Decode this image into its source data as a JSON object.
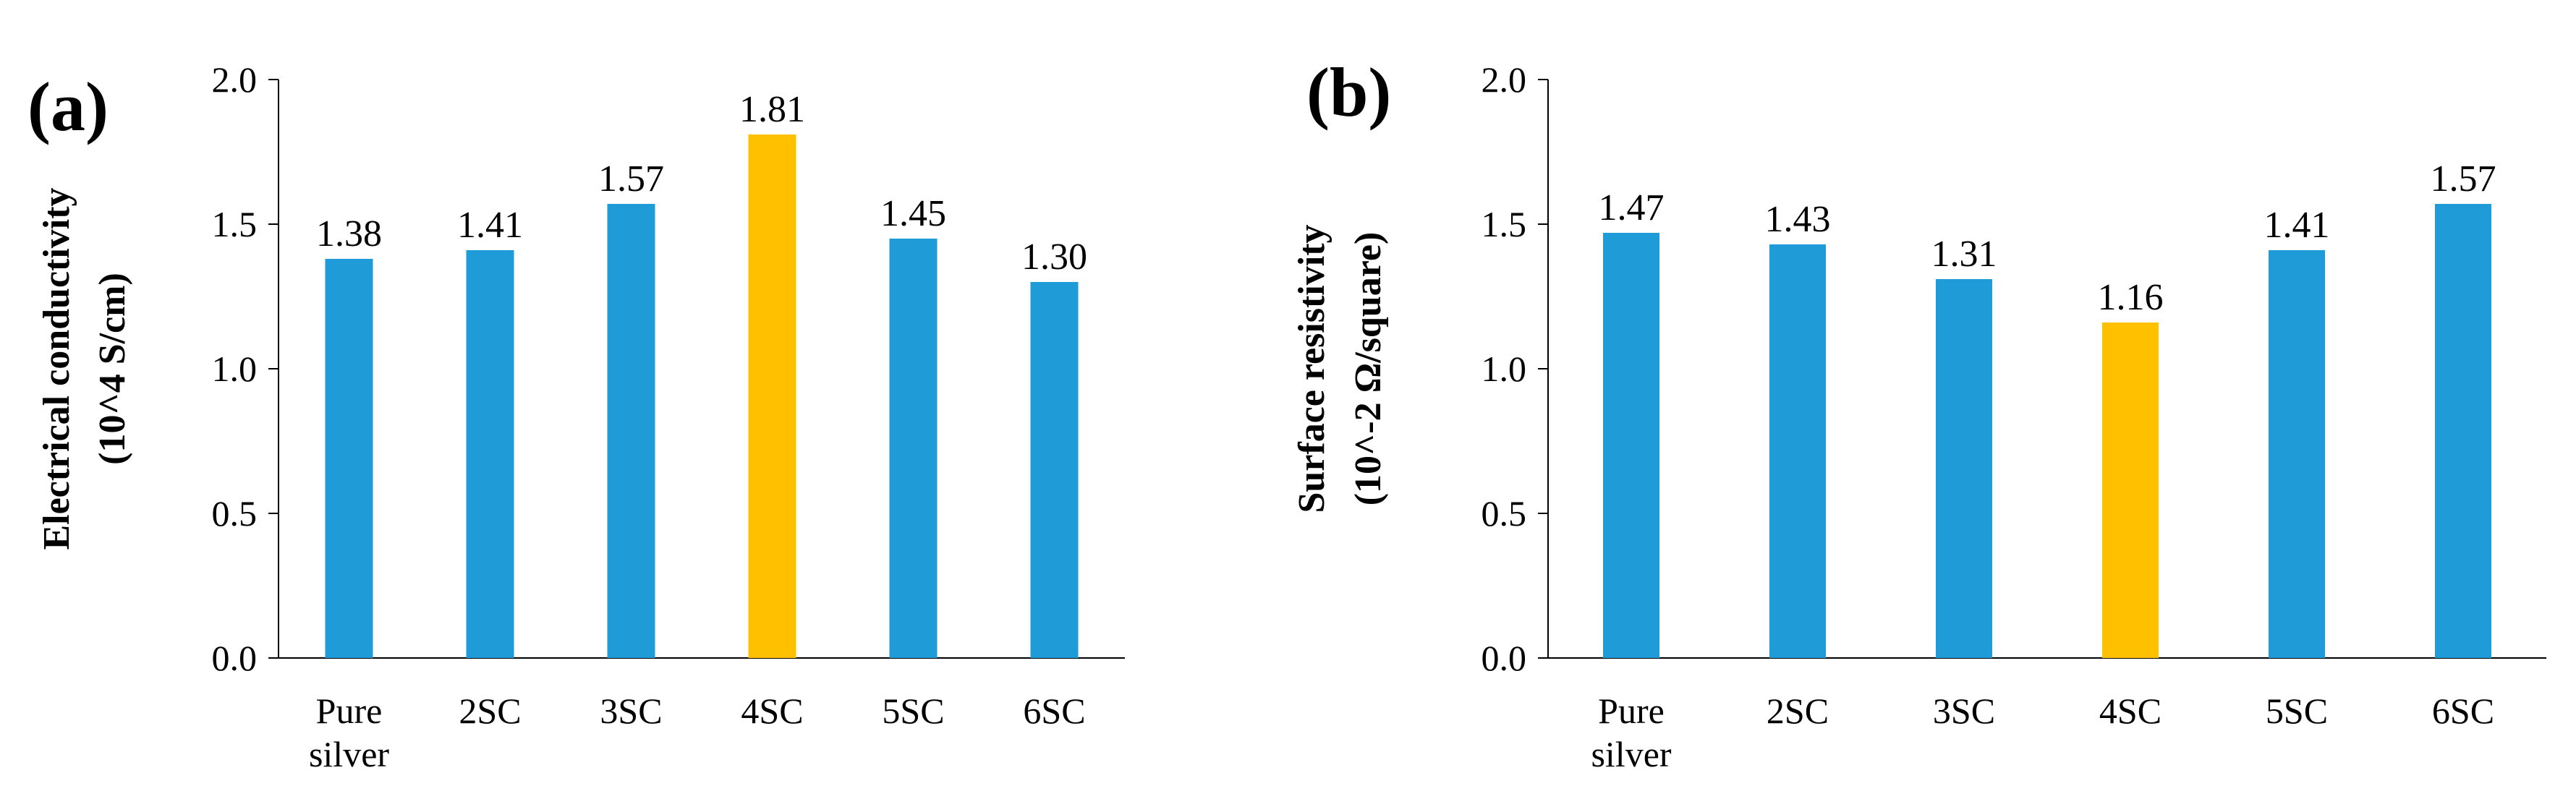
{
  "colors": {
    "bar": "#1F9BD7",
    "highlight": "#FFC000",
    "axis": "#000000"
  },
  "chart_data": [
    {
      "type": "bar",
      "panel_label": "(a)",
      "categories": [
        [
          "Pure",
          "silver"
        ],
        [
          "2SC"
        ],
        [
          "3SC"
        ],
        [
          "4SC"
        ],
        [
          "5SC"
        ],
        [
          "6SC"
        ]
      ],
      "values": [
        1.38,
        1.41,
        1.57,
        1.81,
        1.45,
        1.3
      ],
      "value_labels": [
        "1.38",
        "1.41",
        "1.57",
        "1.81",
        "1.45",
        "1.30"
      ],
      "highlight_index": 3,
      "ylabel": [
        "Electrical conductivity",
        "(10^4 S/cm)"
      ],
      "ylim": [
        0,
        2.0
      ],
      "yticks": [
        "0.0",
        "0.5",
        "1.0",
        "1.5",
        "2.0"
      ],
      "xlabel": "",
      "grid": false
    },
    {
      "type": "bar",
      "panel_label": "(b)",
      "categories": [
        [
          "Pure",
          "silver"
        ],
        [
          "2SC"
        ],
        [
          "3SC"
        ],
        [
          "4SC"
        ],
        [
          "5SC"
        ],
        [
          "6SC"
        ]
      ],
      "values": [
        1.47,
        1.43,
        1.31,
        1.16,
        1.41,
        1.57
      ],
      "value_labels": [
        "1.47",
        "1.43",
        "1.31",
        "1.16",
        "1.41",
        "1.57"
      ],
      "highlight_index": 3,
      "ylabel": [
        "Surface resistivity",
        "(10^-2 Ω/square)"
      ],
      "ylim": [
        0,
        2.0
      ],
      "yticks": [
        "0.0",
        "0.5",
        "1.0",
        "1.5",
        "2.0"
      ],
      "xlabel": "",
      "grid": false
    }
  ]
}
